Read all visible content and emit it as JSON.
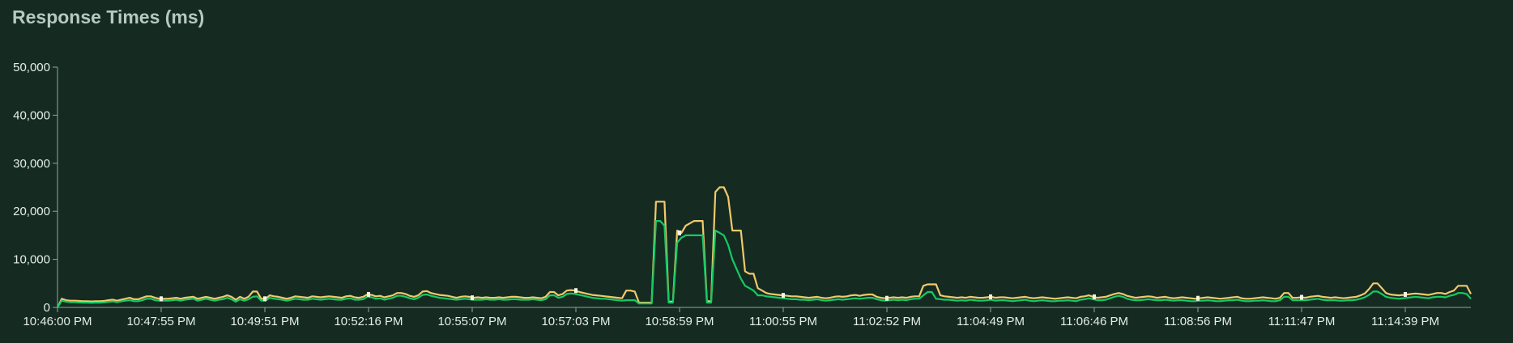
{
  "chart_data": {
    "type": "line",
    "title": "Response Times (ms)",
    "xlabel": "",
    "ylabel": "",
    "ylim": [
      0,
      50000
    ],
    "y_ticks": [
      0,
      10000,
      20000,
      30000,
      40000,
      50000
    ],
    "y_tick_labels": [
      "0",
      "10,000",
      "20,000",
      "30,000",
      "40,000",
      "50,000"
    ],
    "x_tick_labels": [
      "10:46:00 PM",
      "10:47:55 PM",
      "10:49:51 PM",
      "10:52:16 PM",
      "10:55:07 PM",
      "10:57:03 PM",
      "10:58:59 PM",
      "11:00:55 PM",
      "11:02:52 PM",
      "11:04:49 PM",
      "11:06:46 PM",
      "11:08:56 PM",
      "11:11:47 PM",
      "11:14:39 PM"
    ],
    "legend": "none",
    "grid": false,
    "colors": {
      "background": "#152b22",
      "axis": "#8fa89a",
      "series_upper": "#f2c96a",
      "series_lower": "#16c964",
      "marker": "#f4f4e6"
    },
    "series": [
      {
        "values": [
          0,
          1800,
          1500,
          1400,
          1400,
          1350,
          1300,
          1300,
          1250,
          1300,
          1300,
          1350,
          1500,
          1600,
          1400,
          1600,
          1800,
          2000,
          1700,
          1700,
          2000,
          2300,
          2300,
          2000,
          1800,
          1800,
          1800,
          1900,
          2000,
          1800,
          2000,
          2100,
          2200,
          1800,
          2000,
          2200,
          2000,
          1800,
          2000,
          2200,
          2500,
          2200,
          1600,
          2200,
          1800,
          2200,
          3300,
          3300,
          1800,
          1800,
          2500,
          2300,
          2200,
          2000,
          1800,
          2000,
          2300,
          2200,
          2100,
          2000,
          2300,
          2200,
          2100,
          2200,
          2300,
          2200,
          2100,
          2000,
          2300,
          2400,
          2100,
          2000,
          2200,
          2700,
          2600,
          2300,
          2400,
          2100,
          2300,
          2500,
          3000,
          3000,
          2800,
          2400,
          2200,
          2500,
          3300,
          3400,
          3000,
          2800,
          2600,
          2500,
          2400,
          2200,
          2000,
          2200,
          2300,
          2200,
          2000,
          2100,
          2000,
          2100,
          2000,
          2000,
          2100,
          2000,
          2100,
          2200,
          2200,
          2100,
          2000,
          2000,
          2100,
          2000,
          1900,
          2200,
          3200,
          3200,
          2500,
          2800,
          3500,
          3600,
          3500,
          3200,
          3000,
          2800,
          2600,
          2500,
          2400,
          2300,
          2200,
          2100,
          2000,
          1900,
          3500,
          3500,
          3300,
          1000,
          1000,
          1000,
          1000,
          22000,
          22000,
          22000,
          1200,
          1200,
          16000,
          15500,
          17000,
          17500,
          18000,
          18000,
          18000,
          1300,
          1300,
          24000,
          25000,
          25000,
          23000,
          16000,
          16000,
          16000,
          7500,
          7000,
          7000,
          4000,
          3500,
          3000,
          2800,
          2700,
          2600,
          2500,
          2400,
          2300,
          2300,
          2200,
          2100,
          2000,
          2100,
          2200,
          2000,
          1900,
          2000,
          2200,
          2300,
          2200,
          2300,
          2500,
          2600,
          2400,
          2600,
          2700,
          2700,
          2200,
          2000,
          1900,
          2000,
          2100,
          2000,
          2100,
          2000,
          2200,
          2300,
          2300,
          4500,
          4800,
          4800,
          4800,
          2500,
          2300,
          2200,
          2100,
          2000,
          2100,
          2000,
          2200,
          2100,
          2000,
          2000,
          2100,
          2200,
          2000,
          2100,
          2100,
          2000,
          1900,
          2000,
          2100,
          2200,
          2000,
          1900,
          2000,
          2100,
          2000,
          1900,
          1800,
          1900,
          2000,
          2100,
          2000,
          1900,
          2200,
          2300,
          2500,
          2200,
          2000,
          2100,
          2200,
          2500,
          2800,
          3000,
          2800,
          2400,
          2200,
          2000,
          2100,
          2200,
          2300,
          2200,
          2000,
          2100,
          2200,
          2000,
          1900,
          2000,
          2100,
          2000,
          1900,
          1800,
          1900,
          2000,
          2100,
          2000,
          1900,
          1800,
          1900,
          2000,
          2100,
          2200,
          1900,
          1800,
          1800,
          1900,
          2000,
          2100,
          2000,
          1900,
          1800,
          2000,
          3000,
          3000,
          2000,
          2000,
          2100,
          2000,
          2200,
          2300,
          2400,
          2200,
          2100,
          2000,
          2100,
          2000,
          1900,
          2000,
          2100,
          2200,
          2500,
          2900,
          3800,
          5000,
          5000,
          4000,
          3000,
          2700,
          2600,
          2500,
          2600,
          2700,
          2800,
          2900,
          2800,
          2700,
          2600,
          2800,
          3000,
          3000,
          2800,
          3200,
          3500,
          4500,
          4500,
          4500,
          2800
        ]
      },
      {
        "values": [
          0,
          1400,
          1200,
          1100,
          1100,
          1050,
          1000,
          1000,
          950,
          1000,
          1000,
          1050,
          1150,
          1250,
          1100,
          1250,
          1400,
          1500,
          1300,
          1300,
          1500,
          1800,
          1800,
          1500,
          1400,
          1400,
          1400,
          1500,
          1600,
          1400,
          1600,
          1700,
          1800,
          1400,
          1600,
          1800,
          1600,
          1400,
          1600,
          1700,
          2000,
          1700,
          1200,
          1700,
          1400,
          1700,
          2200,
          2300,
          1400,
          1400,
          2000,
          1800,
          1700,
          1600,
          1400,
          1600,
          1800,
          1700,
          1600,
          1600,
          1800,
          1700,
          1600,
          1700,
          1800,
          1700,
          1600,
          1600,
          1800,
          1900,
          1600,
          1600,
          1700,
          2200,
          2100,
          1800,
          1900,
          1600,
          1800,
          2000,
          2400,
          2400,
          2200,
          1900,
          1700,
          2000,
          2600,
          2700,
          2400,
          2200,
          2000,
          1900,
          1800,
          1700,
          1600,
          1700,
          1800,
          1700,
          1600,
          1600,
          1600,
          1700,
          1600,
          1600,
          1700,
          1600,
          1600,
          1700,
          1700,
          1600,
          1600,
          1600,
          1700,
          1600,
          1500,
          1700,
          2500,
          2500,
          2000,
          2200,
          2800,
          2900,
          2800,
          2600,
          2400,
          2200,
          2000,
          1900,
          1800,
          1800,
          1700,
          1600,
          1500,
          1400,
          1500,
          1500,
          1500,
          800,
          800,
          800,
          800,
          18000,
          18000,
          17000,
          1000,
          1000,
          13500,
          14500,
          15000,
          15000,
          15000,
          15000,
          15000,
          1000,
          1000,
          16000,
          15500,
          15000,
          13000,
          10000,
          8000,
          6000,
          4500,
          4000,
          3500,
          2500,
          2500,
          2300,
          2200,
          2100,
          2000,
          1900,
          1800,
          1700,
          1700,
          1600,
          1600,
          1500,
          1600,
          1700,
          1500,
          1400,
          1500,
          1600,
          1700,
          1600,
          1700,
          1800,
          1900,
          1800,
          1900,
          2000,
          2000,
          1700,
          1500,
          1400,
          1500,
          1600,
          1500,
          1600,
          1500,
          1700,
          1800,
          1800,
          2500,
          3200,
          3200,
          1800,
          1700,
          1600,
          1600,
          1500,
          1400,
          1500,
          1400,
          1600,
          1500,
          1400,
          1400,
          1500,
          1600,
          1400,
          1500,
          1500,
          1400,
          1300,
          1400,
          1500,
          1600,
          1400,
          1300,
          1400,
          1500,
          1400,
          1300,
          1300,
          1400,
          1400,
          1500,
          1400,
          1300,
          1600,
          1700,
          1900,
          1700,
          1500,
          1500,
          1600,
          1900,
          2200,
          2400,
          2200,
          1800,
          1600,
          1500,
          1500,
          1600,
          1700,
          1600,
          1500,
          1500,
          1600,
          1500,
          1400,
          1500,
          1500,
          1400,
          1300,
          1300,
          1400,
          1400,
          1500,
          1400,
          1300,
          1300,
          1400,
          1500,
          1500,
          1600,
          1400,
          1300,
          1300,
          1400,
          1400,
          1500,
          1400,
          1300,
          1300,
          1500,
          2200,
          2200,
          1500,
          1500,
          1500,
          1500,
          1600,
          1700,
          1800,
          1600,
          1500,
          1500,
          1500,
          1400,
          1400,
          1500,
          1500,
          1600,
          1800,
          2100,
          2600,
          3300,
          3300,
          2800,
          2200,
          2000,
          1900,
          1800,
          1900,
          2000,
          2100,
          2200,
          2100,
          2000,
          1900,
          2100,
          2200,
          2200,
          2100,
          2400,
          2600,
          3000,
          3000,
          2800,
          1800
        ]
      }
    ]
  }
}
